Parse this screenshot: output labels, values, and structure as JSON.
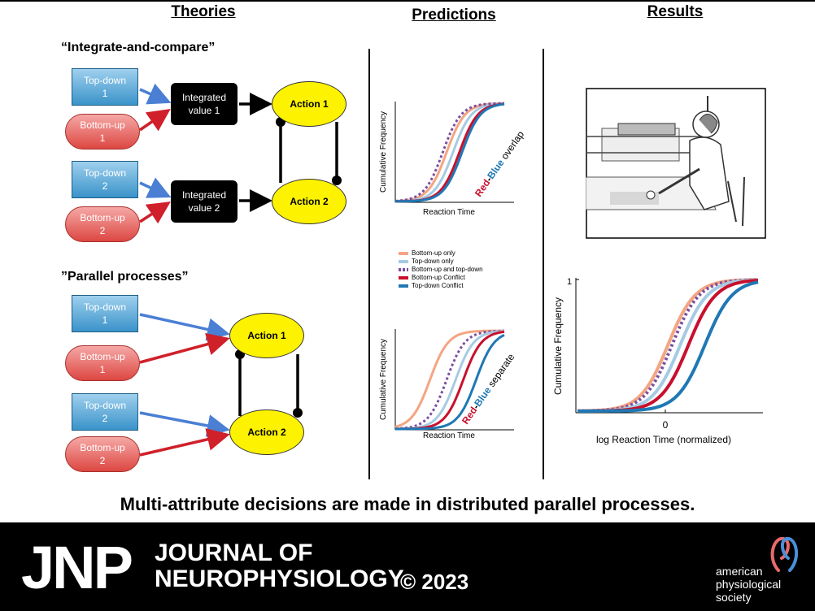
{
  "headers": {
    "theories": "Theories",
    "predictions": "Predictions",
    "results": "Results"
  },
  "theories": {
    "integrate_title": "“Integrate-and-compare”",
    "parallel_title": "”Parallel processes”",
    "top_down_1": [
      "Top-down",
      "1"
    ],
    "top_down_2": [
      "Top-down",
      "2"
    ],
    "bottom_up_1": [
      "Bottom-up",
      "1"
    ],
    "bottom_up_2": [
      "Bottom-up",
      "2"
    ],
    "integrated_1": [
      "Integrated",
      "value  1"
    ],
    "integrated_2": [
      "Integrated",
      "value  2"
    ],
    "action_1": "Action 1",
    "action_2": "Action 2"
  },
  "predictions": {
    "ylabel": "Cumulative Frequency",
    "xlabel": "Reaction Time",
    "overlap_label": {
      "red": "Red",
      "dash": "-",
      "blue": "Blue",
      "rest": " overlap"
    },
    "separate_label": {
      "red": "Red",
      "dash": "-",
      "blue": "Blue",
      "rest": " separate"
    },
    "legend": [
      {
        "name": "Bottom-up only",
        "color": "#f4a582",
        "style": "solid"
      },
      {
        "name": "Top-down only",
        "color": "#a6cbe3",
        "style": "solid"
      },
      {
        "name": "Bottom-up and top-down",
        "color": "#7b4fa0",
        "style": "dotted"
      },
      {
        "name": "Bottom-up Conflict",
        "color": "#c8102e",
        "style": "solid"
      },
      {
        "name": "Top-down Conflict",
        "color": "#1f78b4",
        "style": "solid"
      }
    ]
  },
  "results": {
    "ylabel": "Cumulative Frequency",
    "xlabel": "log Reaction Time (normalized)",
    "y_tick_top": "1",
    "x_tick_zero": "0"
  },
  "tagline": "Multi-attribute decisions are made in distributed parallel processes.",
  "footer": {
    "logo": "JNP",
    "journal_line1": "JOURNAL OF",
    "journal_line2": "NEUROPHYSIOLOGY",
    "copyright": "© 2023",
    "society_line1": "american",
    "society_line2": "physiological",
    "society_line3": "society"
  },
  "chart_data": [
    {
      "type": "line",
      "title": "",
      "xlabel": "Reaction Time",
      "ylabel": "Cumulative Frequency",
      "series": [
        {
          "name": "Bottom-up only",
          "midpoint": 0.55
        },
        {
          "name": "Top-down only",
          "midpoint": 0.6
        },
        {
          "name": "Bottom-up and top-down",
          "midpoint": 0.52
        },
        {
          "name": "Bottom-up Conflict",
          "midpoint": 0.65
        },
        {
          "name": "Top-down Conflict",
          "midpoint": 0.67
        }
      ]
    },
    {
      "type": "line",
      "title": "",
      "xlabel": "Reaction Time",
      "ylabel": "Cumulative Frequency",
      "series": [
        {
          "name": "Bottom-up only",
          "midpoint": 0.42
        },
        {
          "name": "Bottom-up and top-down",
          "midpoint": 0.55
        },
        {
          "name": "Top-down only",
          "midpoint": 0.62
        },
        {
          "name": "Bottom-up Conflict",
          "midpoint": 0.68
        },
        {
          "name": "Top-down Conflict",
          "midpoint": 0.78
        }
      ]
    },
    {
      "type": "line",
      "title": "",
      "xlabel": "log Reaction Time (normalized)",
      "ylabel": "Cumulative Frequency",
      "ylim": [
        0,
        1
      ],
      "series": [
        {
          "name": "Bottom-up only",
          "midpoint": -0.1
        },
        {
          "name": "Bottom-up and top-down",
          "midpoint": -0.05
        },
        {
          "name": "Top-down only",
          "midpoint": 0.05
        },
        {
          "name": "Bottom-up Conflict",
          "midpoint": 0.15
        },
        {
          "name": "Top-down Conflict",
          "midpoint": 0.35
        }
      ]
    }
  ]
}
